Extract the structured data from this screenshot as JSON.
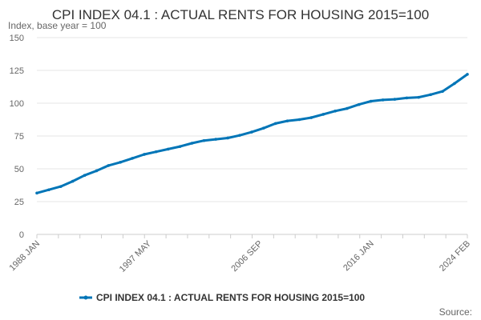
{
  "chart_data": {
    "type": "line",
    "title": "CPI INDEX 04.1 : ACTUAL RENTS FOR HOUSING 2015=100",
    "subtitle": "Index, base year = 100",
    "xlabel": "",
    "ylabel": "",
    "ylim": [
      0,
      150
    ],
    "yticks": [
      0,
      25,
      50,
      75,
      100,
      125,
      150
    ],
    "xticks": [
      "1988 JAN",
      "1997 MAY",
      "2006 SEP",
      "2016 JAN",
      "2024 FEB"
    ],
    "grid": true,
    "legend": "bottom-center",
    "series": [
      {
        "name": "CPI INDEX 04.1 : ACTUAL RENTS FOR HOUSING 2015=100",
        "color": "#0075b7",
        "points": [
          [
            "1988 JAN",
            31.5
          ],
          [
            "1989 JAN",
            34.0
          ],
          [
            "1990 JAN",
            36.5
          ],
          [
            "1991 JAN",
            40.5
          ],
          [
            "1992 JAN",
            45.0
          ],
          [
            "1993 JAN",
            48.5
          ],
          [
            "1994 JAN",
            52.5
          ],
          [
            "1995 JAN",
            55.0
          ],
          [
            "1996 JAN",
            58.0
          ],
          [
            "1997 JAN",
            61.0
          ],
          [
            "1998 JAN",
            63.0
          ],
          [
            "1999 JAN",
            65.0
          ],
          [
            "2000 JAN",
            67.0
          ],
          [
            "2001 JAN",
            69.5
          ],
          [
            "2002 JAN",
            71.5
          ],
          [
            "2003 JAN",
            72.5
          ],
          [
            "2004 JAN",
            73.5
          ],
          [
            "2005 JAN",
            75.5
          ],
          [
            "2006 JAN",
            78.0
          ],
          [
            "2007 JAN",
            81.0
          ],
          [
            "2008 JAN",
            84.5
          ],
          [
            "2009 JAN",
            86.5
          ],
          [
            "2010 JAN",
            87.5
          ],
          [
            "2011 JAN",
            89.0
          ],
          [
            "2012 JAN",
            91.5
          ],
          [
            "2013 JAN",
            94.0
          ],
          [
            "2014 JAN",
            96.0
          ],
          [
            "2015 JAN",
            99.0
          ],
          [
            "2016 JAN",
            101.5
          ],
          [
            "2017 JAN",
            102.5
          ],
          [
            "2018 JAN",
            103.0
          ],
          [
            "2019 JAN",
            104.0
          ],
          [
            "2020 JAN",
            104.5
          ],
          [
            "2021 JAN",
            106.5
          ],
          [
            "2022 JAN",
            109.0
          ],
          [
            "2023 JAN",
            115.0
          ],
          [
            "2024 FEB",
            122.0
          ]
        ]
      }
    ]
  },
  "footer": {
    "source_label": "Source:"
  }
}
